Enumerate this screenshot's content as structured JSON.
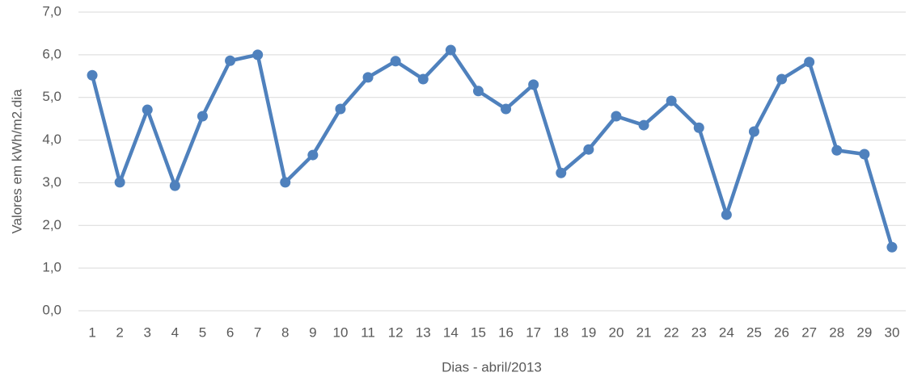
{
  "chart_data": {
    "type": "line",
    "x_label": "Dias - abril/2013",
    "y_label": "Valores em kWh/m2.dia",
    "categories": [
      "1",
      "2",
      "3",
      "4",
      "5",
      "6",
      "7",
      "8",
      "9",
      "10",
      "11",
      "12",
      "13",
      "14",
      "15",
      "16",
      "17",
      "18",
      "19",
      "20",
      "21",
      "22",
      "23",
      "24",
      "25",
      "26",
      "27",
      "28",
      "29",
      "30"
    ],
    "values": [
      5.52,
      3.01,
      4.71,
      2.93,
      4.56,
      5.86,
      6.0,
      3.01,
      3.65,
      4.73,
      5.47,
      5.85,
      5.43,
      6.11,
      5.15,
      4.73,
      5.3,
      3.23,
      3.78,
      4.56,
      4.35,
      4.92,
      4.29,
      2.25,
      4.2,
      5.43,
      5.83,
      3.76,
      3.67,
      1.49
    ],
    "color": "#4f81bd",
    "ylim": [
      0,
      7
    ],
    "yticks": [
      {
        "value": 0,
        "label": "0,0"
      },
      {
        "value": 1,
        "label": "1,0"
      },
      {
        "value": 2,
        "label": "2,0"
      },
      {
        "value": 3,
        "label": "3,0"
      },
      {
        "value": 4,
        "label": "4,0"
      },
      {
        "value": 5,
        "label": "5,0"
      },
      {
        "value": 6,
        "label": "6,0"
      },
      {
        "value": 7,
        "label": "7,0"
      }
    ],
    "grid": true
  }
}
